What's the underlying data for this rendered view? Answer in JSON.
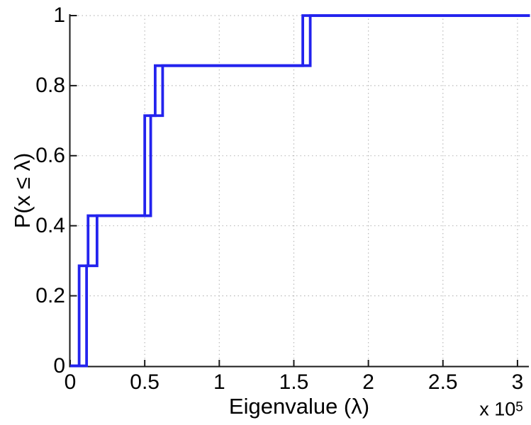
{
  "figure": {
    "title": "",
    "xlabel": "Eigenvalue (λ)",
    "ylabel": "P(x ≤ λ)",
    "x_multiplier_base": "x 10",
    "x_multiplier_exponent": "5"
  },
  "chart_data": {
    "type": "line",
    "subtype": "empirical-cdf-staircase",
    "title": "",
    "xlabel": "Eigenvalue (λ)",
    "ylabel": "P(x ≤ λ)",
    "x_units_note": "x values in units of 1e5 (axis annotated 'x 10^5')",
    "xlim": [
      0,
      3.074
    ],
    "ylim": [
      0,
      1
    ],
    "x_tick_values": [
      0,
      0.5,
      1,
      1.5,
      2,
      2.5,
      3
    ],
    "x_tick_labels": [
      "0",
      "0.5",
      "1",
      "1.5",
      "2",
      "2.5",
      "3"
    ],
    "y_tick_values": [
      0,
      0.2,
      0.4,
      0.6,
      0.8,
      1
    ],
    "y_tick_labels": [
      "0",
      "0.2",
      "0.4",
      "0.6",
      "0.8",
      "1"
    ],
    "grid": "dotted",
    "legend": null,
    "line_color": "#2323ee",
    "grid_color": "#bababa",
    "axis_color": "#1a1a1a",
    "series": [
      {
        "name": "ecdf-curve-1",
        "jump_x": [
          0.06,
          0.12,
          0.5,
          0.57,
          1.56
        ],
        "levels_after_jump": [
          0.2857,
          0.4286,
          0.7143,
          0.8571,
          1.0
        ],
        "sample_values_1e5": [
          0.06,
          0.06,
          0.12,
          0.5,
          0.5,
          0.57,
          1.56
        ],
        "n_samples": 7
      },
      {
        "name": "ecdf-curve-2",
        "jump_x": [
          0.11,
          0.18,
          0.54,
          0.62,
          1.61
        ],
        "levels_after_jump": [
          0.2857,
          0.4286,
          0.7143,
          0.8571,
          1.0
        ],
        "sample_values_1e5": [
          0.11,
          0.11,
          0.18,
          0.54,
          0.54,
          0.62,
          1.61
        ],
        "n_samples": 7
      }
    ]
  }
}
